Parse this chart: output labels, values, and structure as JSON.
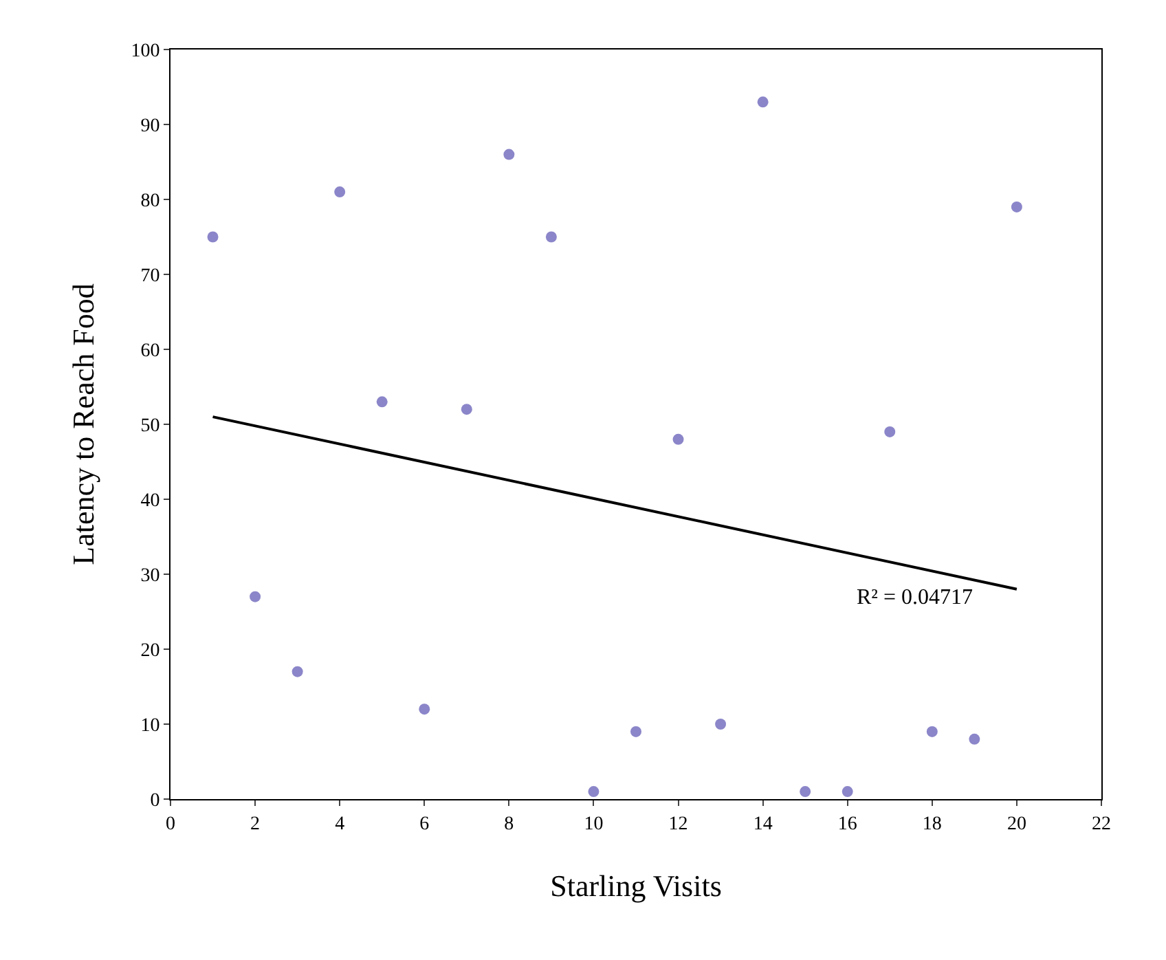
{
  "chart_data": {
    "type": "scatter",
    "xlabel": "Starling Visits",
    "ylabel": "Latency to Reach Food",
    "xlim": [
      0,
      22
    ],
    "xticks": [
      0,
      2,
      4,
      6,
      8,
      10,
      12,
      14,
      16,
      18,
      20,
      22
    ],
    "ylim": [
      0,
      100
    ],
    "yticks": [
      0,
      10,
      20,
      30,
      40,
      50,
      60,
      70,
      80,
      90,
      100
    ],
    "series": [
      {
        "marker": "circle",
        "color": "#8b86c9",
        "x": [
          1,
          2,
          3,
          4,
          5,
          6,
          7,
          8,
          9,
          10,
          11,
          12,
          13,
          14,
          15,
          16,
          17,
          18,
          19,
          20
        ],
        "values": [
          75,
          27,
          17,
          81,
          53,
          12,
          52,
          86,
          75,
          1,
          9,
          48,
          10,
          93,
          1,
          1,
          49,
          9,
          8,
          79
        ]
      },
      {
        "type": "line",
        "color": "#000000",
        "x": [
          1,
          20
        ],
        "values": [
          51,
          28
        ]
      }
    ],
    "annotations": [
      "R² = 0.04717"
    ]
  }
}
